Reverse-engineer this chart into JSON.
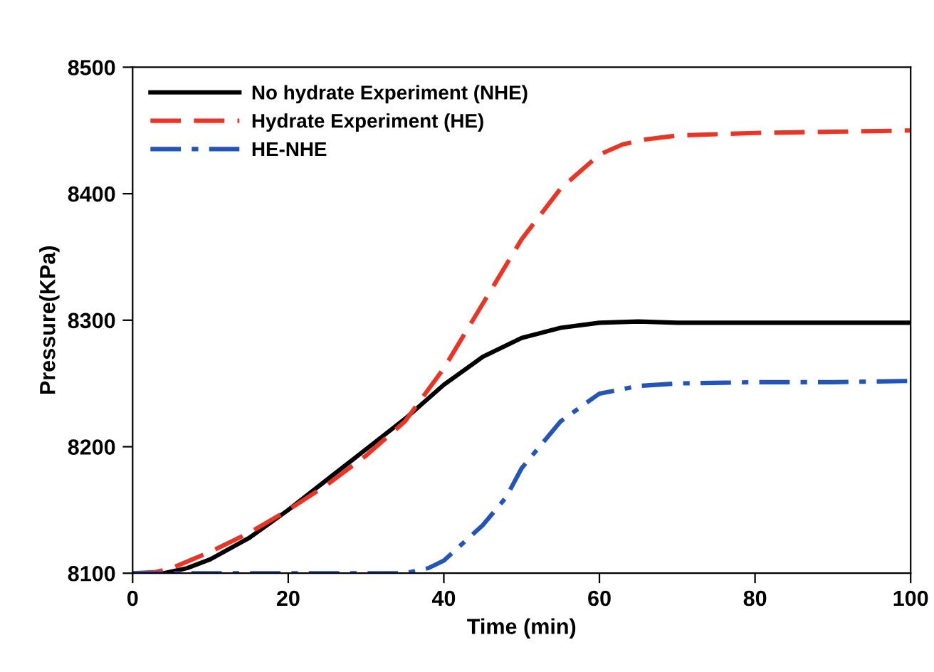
{
  "chart_data": {
    "type": "line",
    "xlabel": "Time (min)",
    "ylabel": "Pressure(KPa)",
    "xlim": [
      0,
      100
    ],
    "xticks": [
      0,
      20,
      40,
      60,
      80,
      100
    ],
    "ylim": [
      8100,
      8500
    ],
    "yticks": [
      8100,
      8200,
      8300,
      8400,
      8500
    ],
    "grid": false,
    "legend": "top left",
    "series": [
      {
        "name": "No hydrate Experiment (NHE)",
        "color": "#000000",
        "line_style": "solid",
        "x": [
          0,
          4,
          7,
          10,
          15,
          20,
          25,
          30,
          35,
          40,
          45,
          50,
          55,
          60,
          65,
          70,
          80,
          90,
          100
        ],
        "values": [
          8100,
          8100,
          8104,
          8111,
          8128,
          8150,
          8174,
          8198,
          8222,
          8249,
          8271,
          8286,
          8294,
          8298,
          8299,
          8298,
          8298,
          8298,
          8298
        ]
      },
      {
        "name": "Hydrate Experiment (HE)",
        "color": "#ee3322",
        "line_style": "dashed",
        "x": [
          0,
          3,
          5,
          10,
          15,
          20,
          25,
          30,
          35,
          40,
          45,
          50,
          55,
          60,
          63,
          66,
          70,
          80,
          90,
          100
        ],
        "values": [
          8100,
          8101,
          8104,
          8117,
          8132,
          8150,
          8170,
          8193,
          8220,
          8262,
          8313,
          8364,
          8404,
          8431,
          8439,
          8443,
          8446,
          8448,
          8449,
          8450
        ]
      },
      {
        "name": "HE-NHE",
        "color": "#2255bb",
        "line_style": "dashdot",
        "x": [
          0,
          10,
          20,
          30,
          35,
          38,
          40,
          45,
          48,
          50,
          55,
          60,
          65,
          70,
          80,
          90,
          100
        ],
        "values": [
          8100,
          8100,
          8100,
          8100,
          8100,
          8104,
          8110,
          8138,
          8160,
          8183,
          8220,
          8242,
          8248,
          8250,
          8251,
          8251,
          8252
        ]
      }
    ]
  }
}
